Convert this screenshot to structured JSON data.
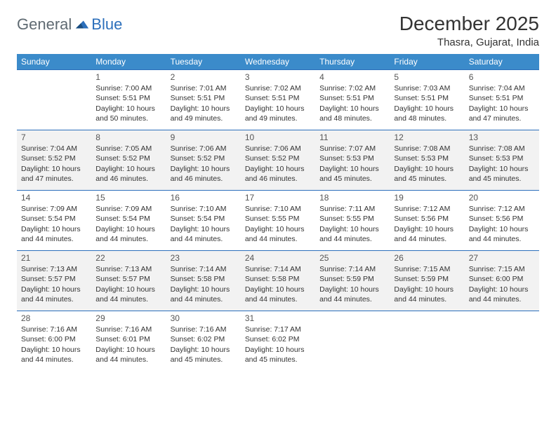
{
  "logo": {
    "text_general": "General",
    "text_blue": "Blue"
  },
  "title": "December 2025",
  "location": "Thasra, Gujarat, India",
  "header_color": "#3b8bca",
  "header_text_color": "#ffffff",
  "border_color": "#2c6fbb",
  "shaded_color": "#f2f2f2",
  "background_color": "#ffffff",
  "text_color": "#333333",
  "font_family": "Arial",
  "title_fontsize": 28,
  "location_fontsize": 15,
  "dayheader_fontsize": 12,
  "cell_fontsize": 10.5,
  "day_headers": [
    "Sunday",
    "Monday",
    "Tuesday",
    "Wednesday",
    "Thursday",
    "Friday",
    "Saturday"
  ],
  "weeks": [
    {
      "shaded": false,
      "cells": [
        null,
        {
          "n": "1",
          "sr": "7:00 AM",
          "ss": "5:51 PM",
          "dh": "10",
          "dm": "50"
        },
        {
          "n": "2",
          "sr": "7:01 AM",
          "ss": "5:51 PM",
          "dh": "10",
          "dm": "49"
        },
        {
          "n": "3",
          "sr": "7:02 AM",
          "ss": "5:51 PM",
          "dh": "10",
          "dm": "49"
        },
        {
          "n": "4",
          "sr": "7:02 AM",
          "ss": "5:51 PM",
          "dh": "10",
          "dm": "48"
        },
        {
          "n": "5",
          "sr": "7:03 AM",
          "ss": "5:51 PM",
          "dh": "10",
          "dm": "48"
        },
        {
          "n": "6",
          "sr": "7:04 AM",
          "ss": "5:51 PM",
          "dh": "10",
          "dm": "47"
        }
      ]
    },
    {
      "shaded": true,
      "cells": [
        {
          "n": "7",
          "sr": "7:04 AM",
          "ss": "5:52 PM",
          "dh": "10",
          "dm": "47"
        },
        {
          "n": "8",
          "sr": "7:05 AM",
          "ss": "5:52 PM",
          "dh": "10",
          "dm": "46"
        },
        {
          "n": "9",
          "sr": "7:06 AM",
          "ss": "5:52 PM",
          "dh": "10",
          "dm": "46"
        },
        {
          "n": "10",
          "sr": "7:06 AM",
          "ss": "5:52 PM",
          "dh": "10",
          "dm": "46"
        },
        {
          "n": "11",
          "sr": "7:07 AM",
          "ss": "5:53 PM",
          "dh": "10",
          "dm": "45"
        },
        {
          "n": "12",
          "sr": "7:08 AM",
          "ss": "5:53 PM",
          "dh": "10",
          "dm": "45"
        },
        {
          "n": "13",
          "sr": "7:08 AM",
          "ss": "5:53 PM",
          "dh": "10",
          "dm": "45"
        }
      ]
    },
    {
      "shaded": false,
      "cells": [
        {
          "n": "14",
          "sr": "7:09 AM",
          "ss": "5:54 PM",
          "dh": "10",
          "dm": "44"
        },
        {
          "n": "15",
          "sr": "7:09 AM",
          "ss": "5:54 PM",
          "dh": "10",
          "dm": "44"
        },
        {
          "n": "16",
          "sr": "7:10 AM",
          "ss": "5:54 PM",
          "dh": "10",
          "dm": "44"
        },
        {
          "n": "17",
          "sr": "7:10 AM",
          "ss": "5:55 PM",
          "dh": "10",
          "dm": "44"
        },
        {
          "n": "18",
          "sr": "7:11 AM",
          "ss": "5:55 PM",
          "dh": "10",
          "dm": "44"
        },
        {
          "n": "19",
          "sr": "7:12 AM",
          "ss": "5:56 PM",
          "dh": "10",
          "dm": "44"
        },
        {
          "n": "20",
          "sr": "7:12 AM",
          "ss": "5:56 PM",
          "dh": "10",
          "dm": "44"
        }
      ]
    },
    {
      "shaded": true,
      "cells": [
        {
          "n": "21",
          "sr": "7:13 AM",
          "ss": "5:57 PM",
          "dh": "10",
          "dm": "44"
        },
        {
          "n": "22",
          "sr": "7:13 AM",
          "ss": "5:57 PM",
          "dh": "10",
          "dm": "44"
        },
        {
          "n": "23",
          "sr": "7:14 AM",
          "ss": "5:58 PM",
          "dh": "10",
          "dm": "44"
        },
        {
          "n": "24",
          "sr": "7:14 AM",
          "ss": "5:58 PM",
          "dh": "10",
          "dm": "44"
        },
        {
          "n": "25",
          "sr": "7:14 AM",
          "ss": "5:59 PM",
          "dh": "10",
          "dm": "44"
        },
        {
          "n": "26",
          "sr": "7:15 AM",
          "ss": "5:59 PM",
          "dh": "10",
          "dm": "44"
        },
        {
          "n": "27",
          "sr": "7:15 AM",
          "ss": "6:00 PM",
          "dh": "10",
          "dm": "44"
        }
      ]
    },
    {
      "shaded": false,
      "cells": [
        {
          "n": "28",
          "sr": "7:16 AM",
          "ss": "6:00 PM",
          "dh": "10",
          "dm": "44"
        },
        {
          "n": "29",
          "sr": "7:16 AM",
          "ss": "6:01 PM",
          "dh": "10",
          "dm": "44"
        },
        {
          "n": "30",
          "sr": "7:16 AM",
          "ss": "6:02 PM",
          "dh": "10",
          "dm": "45"
        },
        {
          "n": "31",
          "sr": "7:17 AM",
          "ss": "6:02 PM",
          "dh": "10",
          "dm": "45"
        },
        null,
        null,
        null
      ]
    }
  ],
  "labels": {
    "sunrise": "Sunrise:",
    "sunset": "Sunset:",
    "daylight": "Daylight:",
    "hours": "hours",
    "and": "and",
    "minutes": "minutes."
  }
}
